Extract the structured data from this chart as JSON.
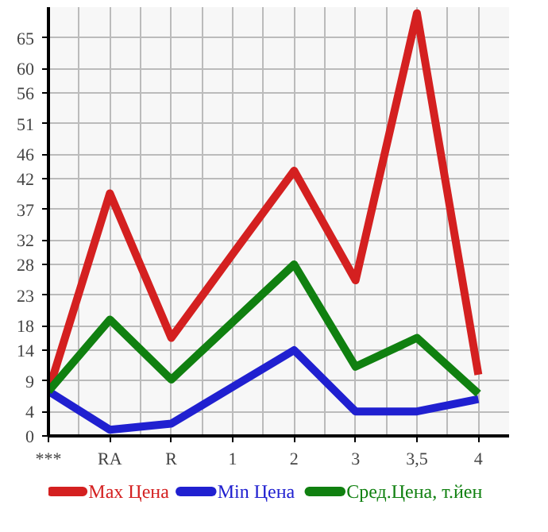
{
  "chart_data": {
    "type": "line",
    "categories": [
      "***",
      "RA",
      "R",
      "1",
      "2",
      "3",
      "3,5",
      "4"
    ],
    "series": [
      {
        "name": "Max Цена",
        "color": "#d42020",
        "values": [
          7.3,
          39.6,
          16,
          29.7,
          43.3,
          25.4,
          69,
          10
        ]
      },
      {
        "name": "Min Цена",
        "color": "#2020d0",
        "values": [
          7.3,
          1,
          2,
          8,
          14,
          4,
          4,
          6
        ]
      },
      {
        "name": "Сред.Цена, т.йен",
        "color": "#108010",
        "values": [
          7.3,
          19,
          9.2,
          18.6,
          28,
          11.3,
          16,
          6.9
        ]
      }
    ],
    "ylim": [
      0,
      70
    ],
    "yticks": [
      0,
      4,
      9,
      14,
      18,
      23,
      28,
      32,
      37,
      42,
      46,
      51,
      56,
      60,
      65
    ],
    "grid": true,
    "legend": "bottom",
    "marker": "none",
    "line_style": "solid"
  }
}
